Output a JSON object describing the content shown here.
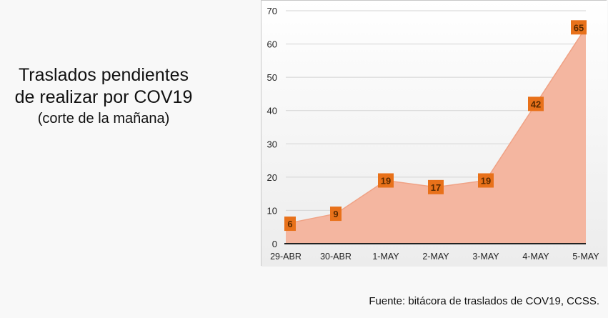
{
  "title": {
    "line1": "Traslados pendientes",
    "line2": "de realizar por COV19",
    "line3": "(corte de la mañana)"
  },
  "source": "Fuente: bitácora de traslados de COV19, CCSS.",
  "colors": {
    "area_fill": "#f4b6a0",
    "area_stroke": "#f0a285",
    "label_bg": "#e8711a",
    "label_text": "#5a2a00",
    "grid": "#d4d4d4",
    "axis": "#222222"
  },
  "chart_data": {
    "type": "area",
    "categories": [
      "29-ABR",
      "30-ABR",
      "1-MAY",
      "2-MAY",
      "3-MAY",
      "4-MAY",
      "5-MAY"
    ],
    "series": [
      {
        "values": [
          6,
          9,
          19,
          17,
          19,
          42,
          65
        ]
      }
    ],
    "data_labels": [
      "6",
      "9",
      "19",
      "17",
      "19",
      "42",
      "65"
    ],
    "y_ticks": [
      "0",
      "10",
      "20",
      "30",
      "40",
      "50",
      "60",
      "70"
    ],
    "ylim": [
      0,
      70
    ],
    "grid": true,
    "legend": "none"
  }
}
